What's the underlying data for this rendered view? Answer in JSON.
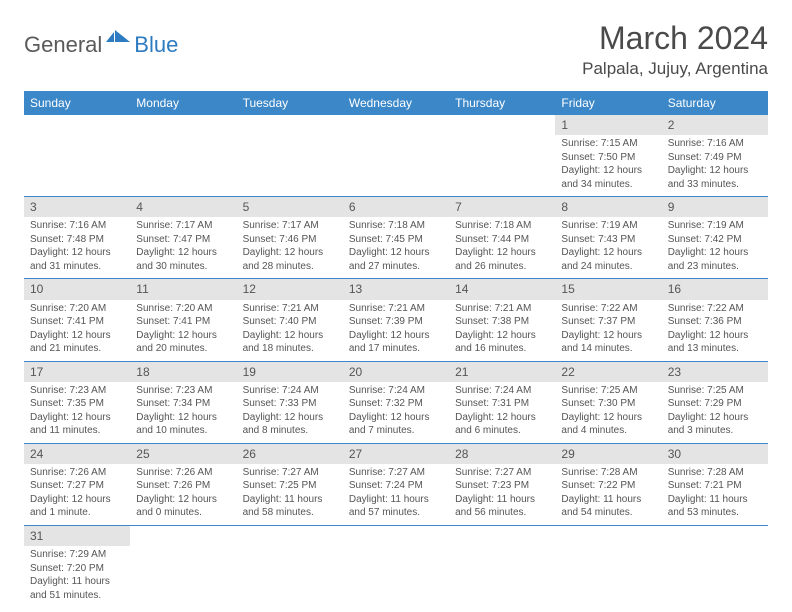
{
  "logo": {
    "general": "General",
    "blue": "Blue"
  },
  "title": "March 2024",
  "location": "Palpala, Jujuy, Argentina",
  "colors": {
    "header_bg": "#3b87c8",
    "header_fg": "#ffffff",
    "daynum_bg": "#e4e4e4",
    "rule": "#3b87c8",
    "text": "#555555"
  },
  "weekdays": [
    "Sunday",
    "Monday",
    "Tuesday",
    "Wednesday",
    "Thursday",
    "Friday",
    "Saturday"
  ],
  "weeks": [
    [
      null,
      null,
      null,
      null,
      null,
      {
        "n": "1",
        "sr": "7:15 AM",
        "ss": "7:50 PM",
        "dl": "12 hours and 34 minutes."
      },
      {
        "n": "2",
        "sr": "7:16 AM",
        "ss": "7:49 PM",
        "dl": "12 hours and 33 minutes."
      }
    ],
    [
      {
        "n": "3",
        "sr": "7:16 AM",
        "ss": "7:48 PM",
        "dl": "12 hours and 31 minutes."
      },
      {
        "n": "4",
        "sr": "7:17 AM",
        "ss": "7:47 PM",
        "dl": "12 hours and 30 minutes."
      },
      {
        "n": "5",
        "sr": "7:17 AM",
        "ss": "7:46 PM",
        "dl": "12 hours and 28 minutes."
      },
      {
        "n": "6",
        "sr": "7:18 AM",
        "ss": "7:45 PM",
        "dl": "12 hours and 27 minutes."
      },
      {
        "n": "7",
        "sr": "7:18 AM",
        "ss": "7:44 PM",
        "dl": "12 hours and 26 minutes."
      },
      {
        "n": "8",
        "sr": "7:19 AM",
        "ss": "7:43 PM",
        "dl": "12 hours and 24 minutes."
      },
      {
        "n": "9",
        "sr": "7:19 AM",
        "ss": "7:42 PM",
        "dl": "12 hours and 23 minutes."
      }
    ],
    [
      {
        "n": "10",
        "sr": "7:20 AM",
        "ss": "7:41 PM",
        "dl": "12 hours and 21 minutes."
      },
      {
        "n": "11",
        "sr": "7:20 AM",
        "ss": "7:41 PM",
        "dl": "12 hours and 20 minutes."
      },
      {
        "n": "12",
        "sr": "7:21 AM",
        "ss": "7:40 PM",
        "dl": "12 hours and 18 minutes."
      },
      {
        "n": "13",
        "sr": "7:21 AM",
        "ss": "7:39 PM",
        "dl": "12 hours and 17 minutes."
      },
      {
        "n": "14",
        "sr": "7:21 AM",
        "ss": "7:38 PM",
        "dl": "12 hours and 16 minutes."
      },
      {
        "n": "15",
        "sr": "7:22 AM",
        "ss": "7:37 PM",
        "dl": "12 hours and 14 minutes."
      },
      {
        "n": "16",
        "sr": "7:22 AM",
        "ss": "7:36 PM",
        "dl": "12 hours and 13 minutes."
      }
    ],
    [
      {
        "n": "17",
        "sr": "7:23 AM",
        "ss": "7:35 PM",
        "dl": "12 hours and 11 minutes."
      },
      {
        "n": "18",
        "sr": "7:23 AM",
        "ss": "7:34 PM",
        "dl": "12 hours and 10 minutes."
      },
      {
        "n": "19",
        "sr": "7:24 AM",
        "ss": "7:33 PM",
        "dl": "12 hours and 8 minutes."
      },
      {
        "n": "20",
        "sr": "7:24 AM",
        "ss": "7:32 PM",
        "dl": "12 hours and 7 minutes."
      },
      {
        "n": "21",
        "sr": "7:24 AM",
        "ss": "7:31 PM",
        "dl": "12 hours and 6 minutes."
      },
      {
        "n": "22",
        "sr": "7:25 AM",
        "ss": "7:30 PM",
        "dl": "12 hours and 4 minutes."
      },
      {
        "n": "23",
        "sr": "7:25 AM",
        "ss": "7:29 PM",
        "dl": "12 hours and 3 minutes."
      }
    ],
    [
      {
        "n": "24",
        "sr": "7:26 AM",
        "ss": "7:27 PM",
        "dl": "12 hours and 1 minute."
      },
      {
        "n": "25",
        "sr": "7:26 AM",
        "ss": "7:26 PM",
        "dl": "12 hours and 0 minutes."
      },
      {
        "n": "26",
        "sr": "7:27 AM",
        "ss": "7:25 PM",
        "dl": "11 hours and 58 minutes."
      },
      {
        "n": "27",
        "sr": "7:27 AM",
        "ss": "7:24 PM",
        "dl": "11 hours and 57 minutes."
      },
      {
        "n": "28",
        "sr": "7:27 AM",
        "ss": "7:23 PM",
        "dl": "11 hours and 56 minutes."
      },
      {
        "n": "29",
        "sr": "7:28 AM",
        "ss": "7:22 PM",
        "dl": "11 hours and 54 minutes."
      },
      {
        "n": "30",
        "sr": "7:28 AM",
        "ss": "7:21 PM",
        "dl": "11 hours and 53 minutes."
      }
    ],
    [
      {
        "n": "31",
        "sr": "7:29 AM",
        "ss": "7:20 PM",
        "dl": "11 hours and 51 minutes."
      },
      null,
      null,
      null,
      null,
      null,
      null
    ]
  ],
  "labels": {
    "sunrise": "Sunrise:",
    "sunset": "Sunset:",
    "daylight": "Daylight:"
  }
}
